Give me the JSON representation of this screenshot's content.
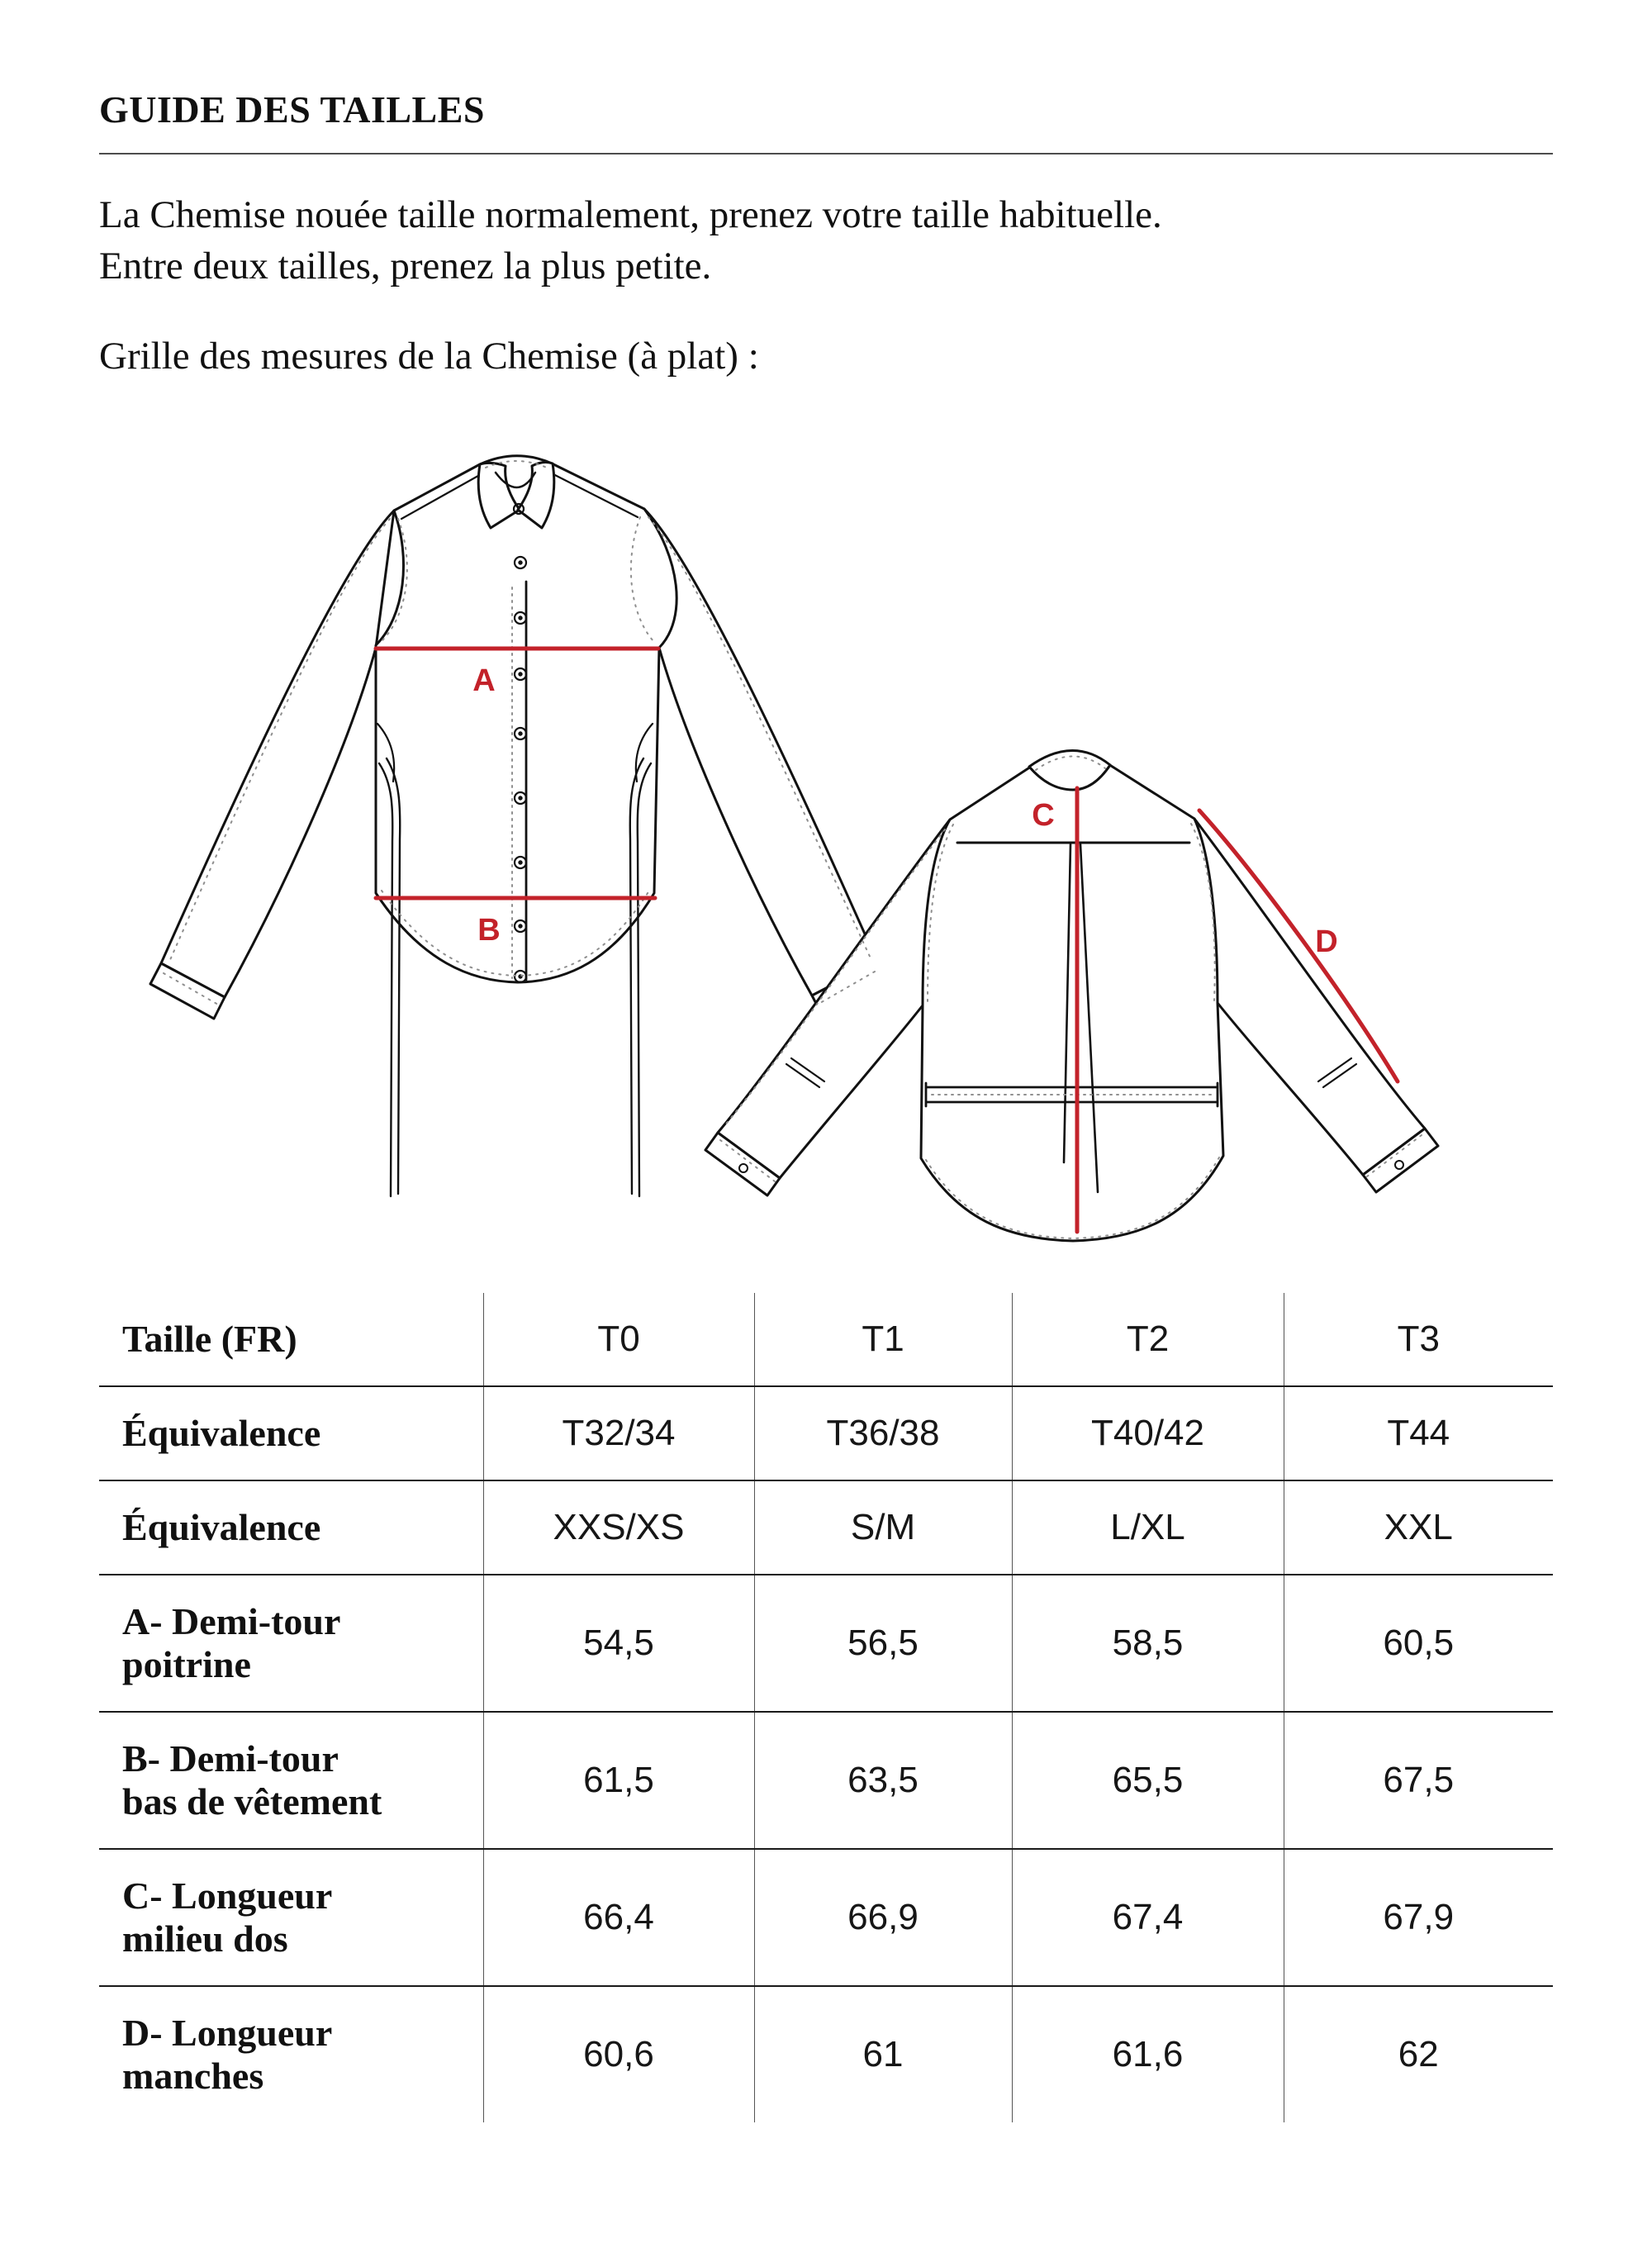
{
  "page": {
    "title": "GUIDE DES TAILLES",
    "intro_line1": "La Chemise nouée taille normalement, prenez votre taille habituelle.",
    "intro_line2": "Entre deux tailles, prenez la plus petite.",
    "measurements_caption": "Grille des mesures de la Chemise (à plat) :"
  },
  "diagram": {
    "annotation_color": "#c3222a",
    "outline_color": "#111111",
    "labels": {
      "chest": "A",
      "hem": "B",
      "back_length": "C",
      "sleeve": "D"
    }
  },
  "size_table": {
    "rows": [
      {
        "header": "Taille (FR)",
        "values": [
          "T0",
          "T1",
          "T2",
          "T3"
        ]
      },
      {
        "header": "Équivalence",
        "values": [
          "T32/34",
          "T36/38",
          "T40/42",
          "T44"
        ]
      },
      {
        "header": "Équivalence",
        "values": [
          "XXS/XS",
          "S/M",
          "L/XL",
          "XXL"
        ]
      },
      {
        "header": "A- Demi-tour\npoitrine",
        "values": [
          "54,5",
          "56,5",
          "58,5",
          "60,5"
        ]
      },
      {
        "header": "B- Demi-tour\nbas de vêtement",
        "values": [
          "61,5",
          "63,5",
          "65,5",
          "67,5"
        ]
      },
      {
        "header": "C- Longueur\nmilieu dos",
        "values": [
          "66,4",
          "66,9",
          "67,4",
          "67,9"
        ]
      },
      {
        "header": "D- Longueur\nmanches",
        "values": [
          "60,6",
          "61",
          "61,6",
          "62"
        ]
      }
    ]
  }
}
